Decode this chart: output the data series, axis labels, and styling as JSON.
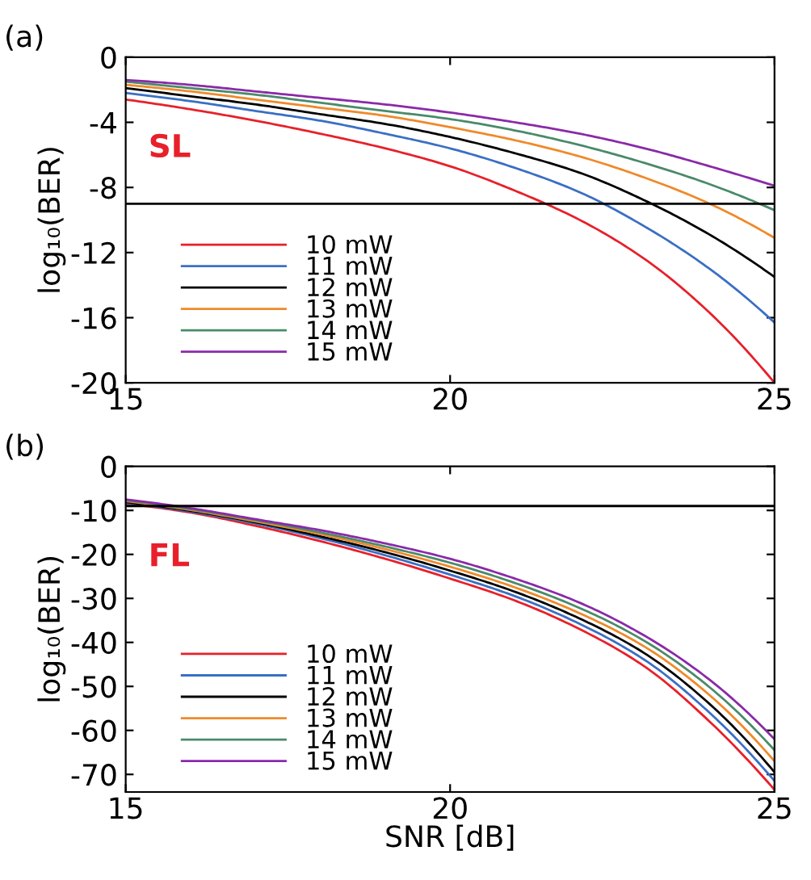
{
  "chart_data": [
    {
      "type": "line",
      "ylabel": "log₁₀(BER)",
      "x": [
        15,
        16,
        17,
        18,
        19,
        20,
        21,
        22,
        23,
        24,
        25
      ],
      "xlim": [
        15,
        25
      ],
      "xticks": [
        15,
        20,
        25
      ],
      "ylim": [
        -20,
        0
      ],
      "yticks": [
        0,
        -4,
        -8,
        -12,
        -16,
        -20
      ],
      "legend": "bottom left",
      "line_style": "solid",
      "annotations": [
        "(a)",
        "SL"
      ],
      "ref_lines": [
        {
          "axis": "y",
          "value": -9,
          "color": "#000000"
        }
      ],
      "series": [
        {
          "name": "10 mW",
          "color": "#e8202a",
          "values": [
            -2.6,
            -3.2,
            -3.9,
            -4.7,
            -5.6,
            -6.7,
            -8.2,
            -10.0,
            -12.4,
            -15.7,
            -20.0
          ]
        },
        {
          "name": "11 mW",
          "color": "#3a6fc4",
          "values": [
            -2.2,
            -2.7,
            -3.3,
            -3.9,
            -4.7,
            -5.6,
            -6.8,
            -8.3,
            -10.4,
            -13.0,
            -16.3
          ]
        },
        {
          "name": "12 mW",
          "color": "#000000",
          "values": [
            -1.9,
            -2.4,
            -2.9,
            -3.5,
            -4.1,
            -4.9,
            -5.9,
            -7.1,
            -8.8,
            -10.9,
            -13.5
          ]
        },
        {
          "name": "13 mW",
          "color": "#f0892a",
          "values": [
            -1.7,
            -2.1,
            -2.6,
            -3.1,
            -3.6,
            -4.3,
            -5.1,
            -6.1,
            -7.4,
            -9.0,
            -11.1
          ]
        },
        {
          "name": "14 mW",
          "color": "#4a8a6a",
          "values": [
            -1.5,
            -1.9,
            -2.3,
            -2.8,
            -3.3,
            -3.8,
            -4.5,
            -5.4,
            -6.5,
            -7.8,
            -9.4
          ]
        },
        {
          "name": "15 mW",
          "color": "#8a2aa8",
          "values": [
            -1.4,
            -1.7,
            -2.1,
            -2.5,
            -2.9,
            -3.4,
            -4.0,
            -4.7,
            -5.6,
            -6.7,
            -7.9
          ]
        }
      ]
    },
    {
      "type": "line",
      "xlabel": "SNR [dB]",
      "ylabel": "log₁₀(BER)",
      "x": [
        15,
        16,
        17,
        18,
        19,
        20,
        21,
        22,
        23,
        24,
        25
      ],
      "xlim": [
        15,
        25
      ],
      "xticks": [
        15,
        20,
        25
      ],
      "ylim": [
        -74,
        0
      ],
      "yticks": [
        0,
        -10,
        -20,
        -30,
        -40,
        -50,
        -60,
        -70
      ],
      "legend": "bottom left",
      "line_style": "solid",
      "annotations": [
        "(b)",
        "FL"
      ],
      "ref_lines": [
        {
          "axis": "y",
          "value": -9,
          "color": "#000000"
        }
      ],
      "series": [
        {
          "name": "10 mW",
          "color": "#e8202a",
          "values": [
            -8.5,
            -10.5,
            -13.5,
            -17,
            -21,
            -25.5,
            -30.5,
            -37,
            -45.5,
            -58,
            -73.5
          ]
        },
        {
          "name": "11 mW",
          "color": "#3a6fc4",
          "values": [
            -8.3,
            -10.3,
            -13,
            -16.3,
            -20.2,
            -24.6,
            -29.5,
            -35.8,
            -44,
            -56,
            -71.5
          ]
        },
        {
          "name": "12 mW",
          "color": "#000000",
          "values": [
            -8.1,
            -10.1,
            -12.7,
            -15.9,
            -19.5,
            -23.7,
            -28.5,
            -34.6,
            -42.5,
            -54,
            -69.5
          ]
        },
        {
          "name": "13 mW",
          "color": "#f0892a",
          "values": [
            -7.9,
            -9.9,
            -12.5,
            -15.4,
            -18.8,
            -22.8,
            -27.5,
            -33.4,
            -41,
            -52,
            -67
          ]
        },
        {
          "name": "14 mW",
          "color": "#4a8a6a",
          "values": [
            -7.7,
            -9.7,
            -12.2,
            -15,
            -18.2,
            -21.9,
            -26.5,
            -32.2,
            -39.7,
            -50.2,
            -64.5
          ]
        },
        {
          "name": "15 mW",
          "color": "#8a2aa8",
          "values": [
            -7.5,
            -9.5,
            -12,
            -14.5,
            -17.5,
            -21,
            -25.5,
            -31,
            -38.5,
            -48.5,
            -62
          ]
        }
      ]
    }
  ]
}
